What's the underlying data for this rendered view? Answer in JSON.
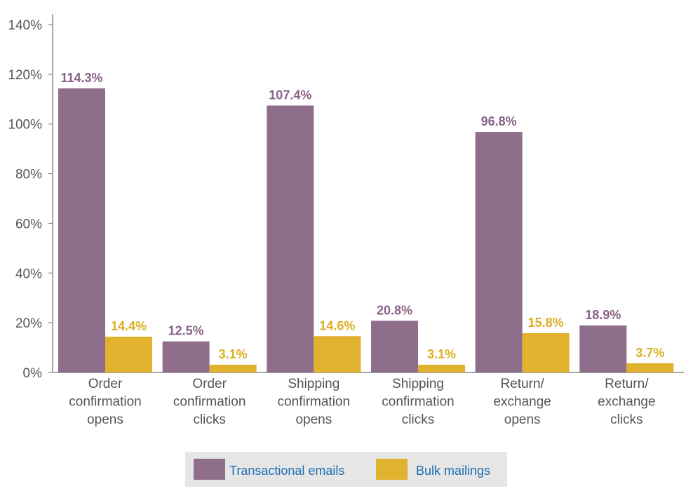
{
  "chart_data": {
    "type": "bar",
    "title": "",
    "xlabel": "",
    "ylabel": "",
    "ylim": [
      0,
      140
    ],
    "yticks": [
      "0%",
      "20%",
      "40%",
      "60%",
      "80%",
      "100%",
      "120%",
      "140%"
    ],
    "ytick_values": [
      0,
      20,
      40,
      60,
      80,
      100,
      120,
      140
    ],
    "categories": [
      [
        "Order",
        "confirmation",
        "opens"
      ],
      [
        "Order",
        "confirmation",
        "clicks"
      ],
      [
        "Shipping",
        "confirmation",
        "opens"
      ],
      [
        "Shipping",
        "confirmation",
        "clicks"
      ],
      [
        "Return/",
        "exchange",
        "opens"
      ],
      [
        "Return/",
        "exchange",
        "clicks"
      ]
    ],
    "series": [
      {
        "name": "Transactional emails",
        "color": "#8f6e8b",
        "label_color": "#8a6187",
        "values": [
          114.3,
          12.5,
          107.4,
          20.8,
          96.8,
          18.9
        ],
        "labels": [
          "114.3%",
          "12.5%",
          "107.4%",
          "20.8%",
          "96.8%",
          "18.9%"
        ]
      },
      {
        "name": "Bulk mailings",
        "color": "#e0b22e",
        "label_color": "#dcae20",
        "values": [
          14.4,
          3.1,
          14.6,
          3.1,
          15.8,
          3.7
        ],
        "labels": [
          "14.4%",
          "3.1%",
          "14.6%",
          "3.1%",
          "15.8%",
          "3.7%"
        ]
      }
    ],
    "grid": false,
    "legend_position": "bottom-center",
    "legend_background": "#e6e6e6"
  }
}
